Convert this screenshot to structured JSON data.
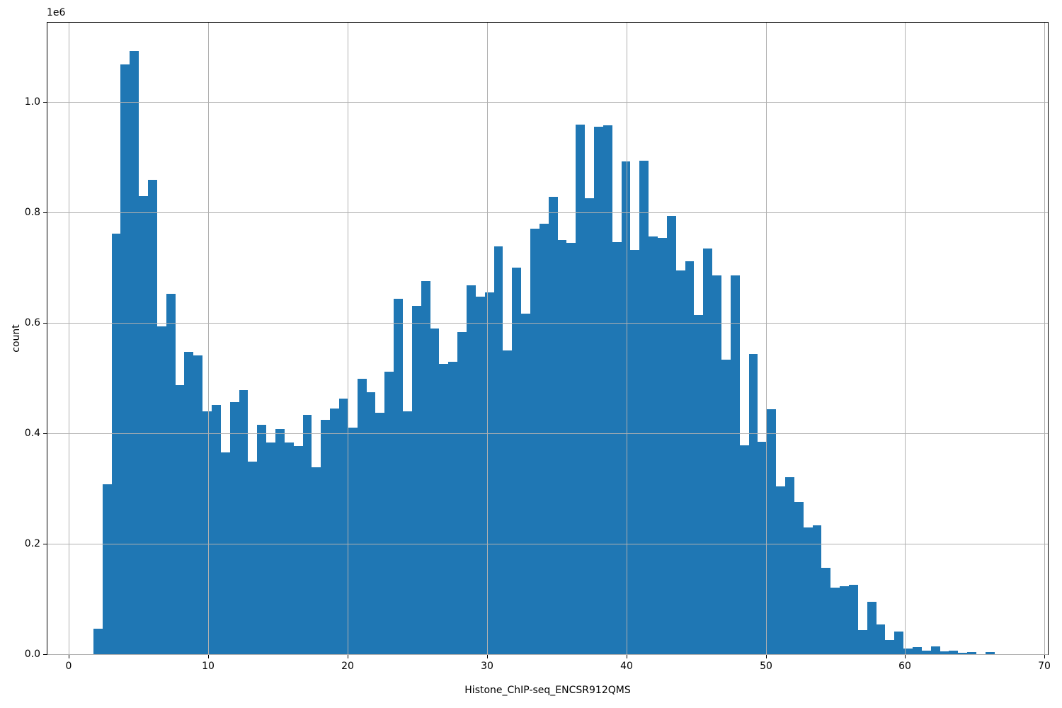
{
  "figure": {
    "background": "#ffffff"
  },
  "chart_data": {
    "type": "bar",
    "subtype": "histogram",
    "title": "",
    "xlabel": "Histone_ChIP-seq_ENCSR912QMS",
    "ylabel": "count",
    "y_scale_label": "1e6",
    "bar_color": "#1f77b4",
    "grid": true,
    "grid_color": "#b0b0b0",
    "legend": null,
    "x_ticks": [
      0,
      10,
      20,
      30,
      40,
      50,
      60,
      70
    ],
    "y_ticks": [
      {
        "label": "0.0",
        "value": 0
      },
      {
        "label": "0.2",
        "value": 200000
      },
      {
        "label": "0.4",
        "value": 400000
      },
      {
        "label": "0.6",
        "value": 600000
      },
      {
        "label": "0.8",
        "value": 800000
      },
      {
        "label": "1.0",
        "value": 1000000
      }
    ],
    "xlim": [
      -1.5,
      70.3
    ],
    "ylim": [
      0,
      1146000
    ],
    "bin_start": 1.77,
    "bin_width": 0.653,
    "counts": [
      46000,
      308000,
      762000,
      1068000,
      1092000,
      829000,
      859000,
      594000,
      652000,
      487000,
      547000,
      541000,
      440000,
      451000,
      365000,
      456000,
      478000,
      349000,
      416000,
      383000,
      408000,
      383000,
      377000,
      433000,
      338000,
      424000,
      445000,
      463000,
      410000,
      499000,
      474000,
      437000,
      512000,
      643000,
      440000,
      631000,
      675000,
      590000,
      525000,
      530000,
      583000,
      668000,
      648000,
      655000,
      738000,
      550000,
      700000,
      617000,
      770000,
      779000,
      828000,
      750000,
      745000,
      959000,
      826000,
      955000,
      958000,
      746000,
      892000,
      732000,
      893000,
      757000,
      754000,
      793000,
      695000,
      712000,
      614000,
      735000,
      686000,
      533000,
      686000,
      378000,
      543000,
      384000,
      444000,
      304000,
      321000,
      276000,
      229000,
      233000,
      156000,
      120000,
      123000,
      126000,
      43000,
      95000,
      54000,
      25000,
      41000,
      10000,
      13000,
      7000,
      14000,
      5500,
      6500,
      3000,
      4000,
      500,
      3500,
      500
    ]
  }
}
